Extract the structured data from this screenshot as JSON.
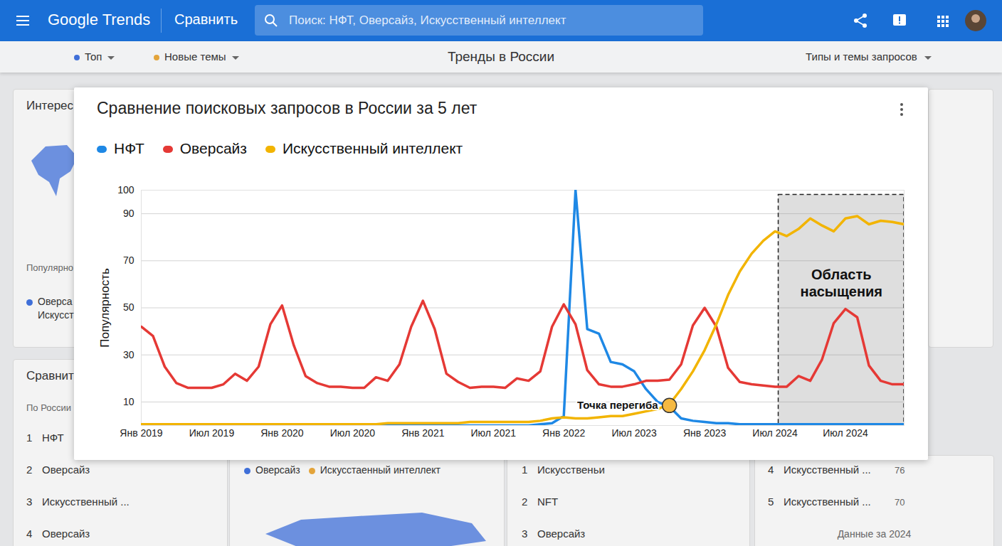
{
  "page": {
    "header": {
      "brand": "Google Trends",
      "section": "Сравнить",
      "search": "Поиск: НФТ, Оверсайз, Искусственный интеллект"
    },
    "toolbar": {
      "filters": [
        {
          "label": "Топ",
          "color": "#3f6fd8"
        },
        {
          "label": "Новые темы",
          "color": "#e3a43a"
        }
      ],
      "title": "Тренды в России",
      "menu": "Типы и темы запросов"
    },
    "panels": {
      "interest": {
        "title": "Интерес",
        "caption": "Популярно",
        "legend": [
          {
            "label": "Оверса",
            "color": "#3f6fd8"
          },
          {
            "label": "Искусст",
            "color": null
          }
        ]
      },
      "compare": {
        "title": "Сравнит",
        "subtitle": "По России",
        "rows": [
          {
            "rank": 1,
            "label": "НФТ"
          },
          {
            "rank": 2,
            "label": "Оверсайз"
          },
          {
            "rank": 3,
            "label": "Искусственный ..."
          },
          {
            "rank": 4,
            "label": "Оверсайз"
          }
        ]
      },
      "map_legend": [
        {
          "label": "Оверсайз",
          "color": "#3f6fd8"
        },
        {
          "label": "Искусстаенный интеллект",
          "color": "#e3a43a"
        }
      ],
      "list_middle": [
        {
          "rank": 1,
          "label": "Искусственьи"
        },
        {
          "rank": 2,
          "label": "NFT"
        },
        {
          "rank": 3,
          "label": "Оверсайз"
        }
      ],
      "list_right": {
        "rows": [
          {
            "rank": 4,
            "label": "Искусственный ...",
            "value": 76
          },
          {
            "rank": 5,
            "label": "Искусственный ...",
            "value": 70
          }
        ],
        "footer": "Данные за 2024"
      }
    }
  },
  "chart_data": {
    "type": "line",
    "title": "Сравнение поисковых запросов в России за 5 лет",
    "y_label": "Популярность",
    "categories": [
      "Янв 2019",
      null,
      null,
      null,
      null,
      null,
      "Июл 2019",
      null,
      null,
      null,
      null,
      null,
      "Янв 2020",
      null,
      null,
      null,
      null,
      null,
      "Июл 2020",
      null,
      null,
      null,
      null,
      null,
      "Янв 2021",
      null,
      null,
      null,
      null,
      null,
      "Июл 2021",
      null,
      null,
      null,
      null,
      null,
      "Янв 2022",
      null,
      null,
      null,
      null,
      null,
      "Июл 2023",
      null,
      null,
      null,
      null,
      null,
      "Янв 2023",
      null,
      null,
      null,
      null,
      null,
      "Июл 2024",
      null,
      null,
      null,
      null,
      null,
      "Июл 2024",
      null,
      null,
      null,
      null,
      null
    ],
    "series": [
      {
        "name": "НФТ",
        "color": "#1e88e5",
        "values": [
          0,
          0,
          0,
          0,
          0,
          0,
          0,
          0,
          0,
          0,
          0,
          0,
          0,
          0,
          0,
          0,
          0,
          0,
          0,
          0,
          0,
          0,
          0,
          0,
          0,
          0,
          0,
          0,
          0,
          0,
          0,
          0,
          0,
          0,
          0.5,
          1,
          4,
          100,
          41,
          39,
          27,
          26,
          23,
          15.5,
          10,
          8,
          3,
          2,
          1.5,
          1,
          1,
          0.5,
          0.5,
          0.5,
          0.5,
          0.5,
          0.5,
          0.5,
          0.5,
          0.5,
          0.5,
          0.5,
          0.5,
          0.5,
          0.5,
          0.5
        ]
      },
      {
        "name": "Оверсайз",
        "color": "#e53935",
        "values": [
          42,
          38,
          25,
          18,
          16,
          16,
          16,
          17.5,
          22,
          19,
          25,
          43,
          51,
          34,
          21,
          18,
          16.5,
          16.5,
          16,
          16,
          20.5,
          19,
          26,
          42,
          53,
          41,
          22,
          18.5,
          16,
          16.5,
          16.5,
          16,
          20,
          19,
          23,
          42,
          51.5,
          43,
          23.5,
          17.5,
          16.5,
          16.5,
          17.5,
          19,
          19,
          19.5,
          26,
          42.5,
          50,
          42,
          24.5,
          18.5,
          17.5,
          17,
          16.5,
          16.5,
          21,
          19,
          28,
          43.5,
          49.5,
          46,
          25.5,
          19,
          17.5,
          17.5
        ]
      },
      {
        "name": "Искусственный интеллект",
        "color": "#f2b400",
        "values": [
          0.5,
          0.5,
          0.5,
          0.5,
          0.5,
          0.5,
          0.5,
          0.5,
          0.5,
          0.5,
          0.5,
          0.5,
          0.5,
          0.5,
          0.5,
          0.5,
          0.5,
          0.5,
          0.5,
          0.5,
          0.5,
          1,
          1,
          1,
          1,
          1,
          1,
          1,
          1.5,
          1.5,
          1.5,
          1.5,
          1.5,
          1.5,
          2,
          3,
          3.5,
          3,
          3,
          3.5,
          4,
          4,
          5,
          6,
          7,
          9,
          15.5,
          23,
          32,
          43,
          55.5,
          65.5,
          73,
          78.5,
          82.5,
          80.5,
          83.5,
          88,
          85,
          82.5,
          88,
          89,
          85.5,
          87,
          86.5,
          85.5
        ]
      }
    ],
    "ylim": [
      0,
      100
    ],
    "yticks": [
      10,
      30,
      50,
      70,
      90,
      100
    ],
    "grid": true,
    "legend": "top-left",
    "annotations": [
      {
        "type": "point",
        "label": "Точка перегиба",
        "x": 45,
        "y": 8.5,
        "color": "#f5b942"
      },
      {
        "type": "region",
        "label": "Область насыщения",
        "x": [
          54.3,
          65
        ],
        "y": [
          0,
          98
        ]
      }
    ]
  }
}
